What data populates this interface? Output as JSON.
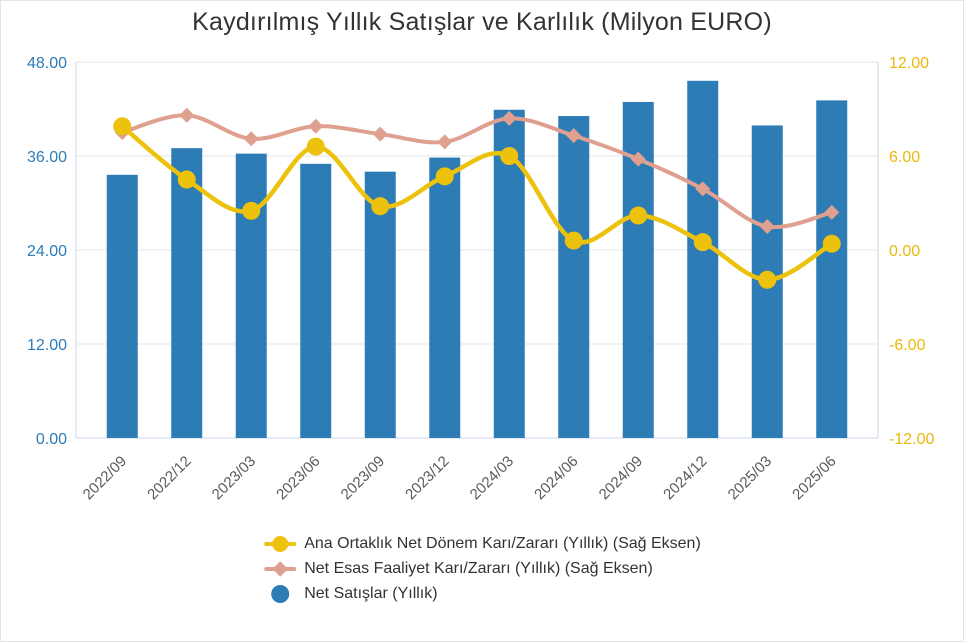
{
  "chart_data": {
    "type": "combo",
    "title": "Kaydırılmış Yıllık Satışlar ve Karlılık (Milyon EURO)",
    "categories": [
      "2022/09",
      "2022/12",
      "2023/03",
      "2023/06",
      "2023/09",
      "2023/12",
      "2024/03",
      "2024/06",
      "2024/09",
      "2024/12",
      "2025/03",
      "2025/06"
    ],
    "series": [
      {
        "name": "Ana Ortaklık Net Dönem Karı/Zararı (Yıllık) (Sağ Eksen)",
        "type": "line",
        "marker": "circle",
        "axis": "right",
        "color": "#ecc20d",
        "values": [
          7.9,
          4.5,
          2.5,
          6.6,
          2.8,
          4.7,
          6.0,
          0.6,
          2.2,
          0.5,
          -1.9,
          0.4
        ]
      },
      {
        "name": "Net Esas Faaliyet Karı/Zararı (Yıllık) (Sağ Eksen)",
        "type": "line",
        "marker": "diamond",
        "axis": "right",
        "color": "#dfa090",
        "values": [
          7.5,
          8.6,
          7.1,
          7.9,
          7.4,
          6.9,
          8.4,
          7.3,
          5.8,
          3.9,
          1.5,
          2.4
        ]
      },
      {
        "name": "Net Satışlar (Yıllık)",
        "type": "bar",
        "marker": "circle",
        "axis": "left",
        "color": "#2d7cb5",
        "values": [
          33.6,
          37.0,
          36.3,
          35.0,
          34.0,
          35.8,
          41.9,
          41.1,
          42.9,
          45.6,
          39.9,
          43.1
        ]
      }
    ],
    "left_axis": {
      "min": 0,
      "max": 48,
      "tick_values": [
        0,
        12,
        24,
        36,
        48
      ],
      "tick_labels": [
        "0.00",
        "12.00",
        "24.00",
        "36.00",
        "48.00"
      ],
      "color": "#2d7cb8"
    },
    "right_axis": {
      "min": -12,
      "max": 12,
      "tick_values": [
        -12,
        -6,
        0,
        6,
        12
      ],
      "tick_labels": [
        "-12.00",
        "-6.00",
        "0.00",
        "6.00",
        "12.00"
      ],
      "color": "#e8b90b"
    },
    "grid": true,
    "grid_color": "#e6e6e6",
    "axis_line_color": "#ccd6eb",
    "x_label_color": "#58595b",
    "legend_position": "bottom"
  }
}
